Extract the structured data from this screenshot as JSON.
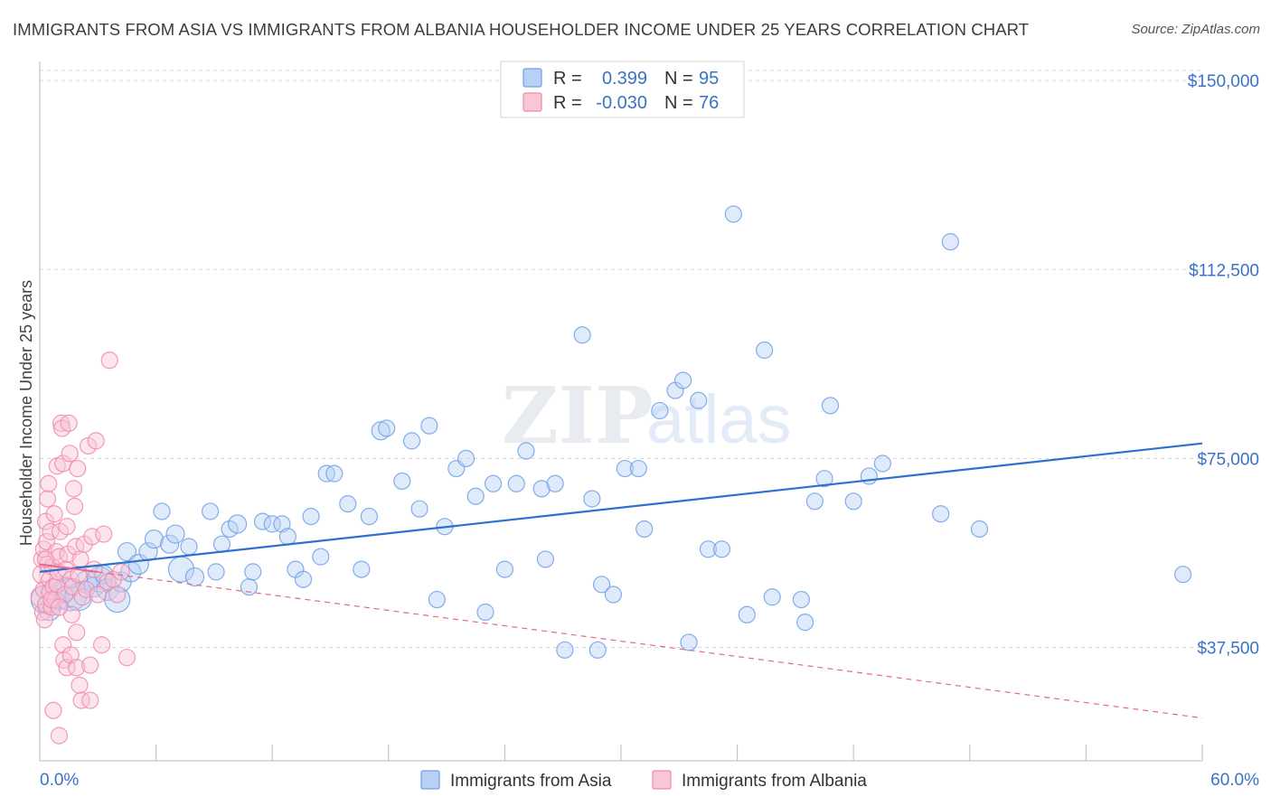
{
  "title": "IMMIGRANTS FROM ASIA VS IMMIGRANTS FROM ALBANIA HOUSEHOLDER INCOME UNDER 25 YEARS CORRELATION CHART",
  "source": "Source: ZipAtlas.com",
  "watermark": {
    "zip": "ZIP",
    "atlas": "atlas"
  },
  "colors": {
    "asia": "#6fa0e8",
    "asia_fill": "#b8d0f4",
    "asia_line": "#2e6fd0",
    "albania": "#f08aaa",
    "albania_fill": "#f9c6d6",
    "albania_line": "#e2678f",
    "axis_text": "#3a72c8",
    "grid": "#d8d8d8"
  },
  "legend": {
    "rows": [
      {
        "r_label": "R =",
        "r_value": "0.399",
        "n_label": "N =",
        "n_value": "95",
        "series": "asia"
      },
      {
        "r_label": "R =",
        "r_value": "-0.030",
        "n_label": "N =",
        "n_value": "76",
        "series": "albania"
      }
    ]
  },
  "chart_data": {
    "type": "scatter",
    "title": "IMMIGRANTS FROM ASIA VS IMMIGRANTS FROM ALBANIA HOUSEHOLDER INCOME UNDER 25 YEARS CORRELATION CHART",
    "xlabel": "",
    "ylabel": "Householder Income Under 25 years",
    "xlim": [
      0,
      60
    ],
    "ylim": [
      15000,
      152000
    ],
    "x_tick_labels": [
      "0.0%",
      "60.0%"
    ],
    "y_ticks": [
      37500,
      75000,
      112500,
      150000
    ],
    "y_tick_labels": [
      "$37,500",
      "$75,000",
      "$112,500",
      "$150,000"
    ],
    "grid": "horizontal dashed",
    "legend_position": "bottom",
    "series": [
      {
        "name": "Immigrants from Asia",
        "key": "asia",
        "trend": {
          "x": [
            0,
            60
          ],
          "y": [
            52500,
            78000
          ]
        },
        "points": [
          [
            0.3,
            47000,
            16
          ],
          [
            0.5,
            45000,
            12
          ],
          [
            0.8,
            48500,
            14
          ],
          [
            1.0,
            47000,
            11
          ],
          [
            1.3,
            49000,
            13
          ],
          [
            1.6,
            48000,
            18
          ],
          [
            2.0,
            47500,
            15
          ],
          [
            2.4,
            50500,
            12
          ],
          [
            2.8,
            49500,
            11
          ],
          [
            3.1,
            51000,
            14
          ],
          [
            3.3,
            52000,
            10
          ],
          [
            3.5,
            49000,
            12
          ],
          [
            4.0,
            47000,
            14
          ],
          [
            4.2,
            50500,
            11
          ],
          [
            4.5,
            56500,
            10
          ],
          [
            4.7,
            52500,
            11
          ],
          [
            5.1,
            54000,
            11
          ],
          [
            5.6,
            56500,
            10
          ],
          [
            5.9,
            59000,
            10
          ],
          [
            6.3,
            64500,
            9
          ],
          [
            6.7,
            58000,
            10
          ],
          [
            7.0,
            60000,
            10
          ],
          [
            7.3,
            53000,
            14
          ],
          [
            7.7,
            57500,
            9
          ],
          [
            8.0,
            51500,
            10
          ],
          [
            8.8,
            64500,
            9
          ],
          [
            9.1,
            52500,
            9
          ],
          [
            9.4,
            58000,
            9
          ],
          [
            9.8,
            61000,
            9
          ],
          [
            10.2,
            62000,
            10
          ],
          [
            10.8,
            49500,
            9
          ],
          [
            11.0,
            52500,
            9
          ],
          [
            11.5,
            62500,
            9
          ],
          [
            12.0,
            62000,
            9
          ],
          [
            12.5,
            62000,
            9
          ],
          [
            12.8,
            59500,
            9
          ],
          [
            13.2,
            53000,
            9
          ],
          [
            13.6,
            51000,
            9
          ],
          [
            14.0,
            63500,
            9
          ],
          [
            14.5,
            55500,
            9
          ],
          [
            14.8,
            72000,
            9
          ],
          [
            15.2,
            72000,
            9
          ],
          [
            15.9,
            66000,
            9
          ],
          [
            16.6,
            53000,
            9
          ],
          [
            17.0,
            63500,
            9
          ],
          [
            17.6,
            80500,
            10
          ],
          [
            17.9,
            81000,
            9
          ],
          [
            18.7,
            70500,
            9
          ],
          [
            19.2,
            78500,
            9
          ],
          [
            19.6,
            65000,
            9
          ],
          [
            20.1,
            81500,
            9
          ],
          [
            20.5,
            47000,
            9
          ],
          [
            20.9,
            61500,
            9
          ],
          [
            21.5,
            73000,
            9
          ],
          [
            22.0,
            75000,
            9
          ],
          [
            22.5,
            67500,
            9
          ],
          [
            23.0,
            44500,
            9
          ],
          [
            23.4,
            70000,
            9
          ],
          [
            24.0,
            53000,
            9
          ],
          [
            24.6,
            70000,
            9
          ],
          [
            25.1,
            76500,
            9
          ],
          [
            25.9,
            69000,
            9
          ],
          [
            26.1,
            55000,
            9
          ],
          [
            26.6,
            70000,
            9
          ],
          [
            27.1,
            37000,
            9
          ],
          [
            28.0,
            99500,
            9
          ],
          [
            28.5,
            67000,
            9
          ],
          [
            28.8,
            37000,
            9
          ],
          [
            29.0,
            50000,
            9
          ],
          [
            29.6,
            48000,
            9
          ],
          [
            30.2,
            73000,
            9
          ],
          [
            30.9,
            73000,
            9
          ],
          [
            31.2,
            61000,
            9
          ],
          [
            32.0,
            84500,
            9
          ],
          [
            32.8,
            88500,
            9
          ],
          [
            33.2,
            90500,
            9
          ],
          [
            33.5,
            38500,
            9
          ],
          [
            34.0,
            86500,
            9
          ],
          [
            34.5,
            57000,
            9
          ],
          [
            35.2,
            57000,
            9
          ],
          [
            35.8,
            123500,
            9
          ],
          [
            36.5,
            44000,
            9
          ],
          [
            37.4,
            96500,
            9
          ],
          [
            37.8,
            47500,
            9
          ],
          [
            39.3,
            47000,
            9
          ],
          [
            39.5,
            42500,
            9
          ],
          [
            40.0,
            66500,
            9
          ],
          [
            40.5,
            71000,
            9
          ],
          [
            40.8,
            85500,
            9
          ],
          [
            42.0,
            66500,
            9
          ],
          [
            42.8,
            71500,
            9
          ],
          [
            43.5,
            74000,
            9
          ],
          [
            46.5,
            64000,
            9
          ],
          [
            47.0,
            118000,
            9
          ],
          [
            48.5,
            61000,
            9
          ],
          [
            59.0,
            52000,
            9
          ]
        ]
      },
      {
        "name": "Immigrants from Albania",
        "key": "albania",
        "trend": {
          "x": [
            0,
            60
          ],
          "y": [
            54000,
            23500
          ]
        },
        "points": [
          [
            0.1,
            47500,
            12
          ],
          [
            0.1,
            52000,
            10
          ],
          [
            0.1,
            55000,
            9
          ],
          [
            0.15,
            44500,
            9
          ],
          [
            0.2,
            57000,
            9
          ],
          [
            0.2,
            49000,
            9
          ],
          [
            0.25,
            43000,
            9
          ],
          [
            0.3,
            62500,
            9
          ],
          [
            0.3,
            46000,
            9
          ],
          [
            0.35,
            58500,
            9
          ],
          [
            0.4,
            54000,
            9
          ],
          [
            0.4,
            67000,
            9
          ],
          [
            0.45,
            70000,
            9
          ],
          [
            0.5,
            48500,
            9
          ],
          [
            0.5,
            51000,
            9
          ],
          [
            0.55,
            60500,
            9
          ],
          [
            0.6,
            45500,
            9
          ],
          [
            0.65,
            53500,
            9
          ],
          [
            0.7,
            49500,
            9
          ],
          [
            0.7,
            25000,
            9
          ],
          [
            0.75,
            64000,
            9
          ],
          [
            0.8,
            47000,
            9
          ],
          [
            0.85,
            56500,
            9
          ],
          [
            0.9,
            73500,
            9
          ],
          [
            0.9,
            50000,
            9
          ],
          [
            0.95,
            52500,
            9
          ],
          [
            1.0,
            20000,
            9
          ],
          [
            1.0,
            55500,
            9
          ],
          [
            1.05,
            60500,
            9
          ],
          [
            1.1,
            82000,
            9
          ],
          [
            1.15,
            81000,
            9
          ],
          [
            1.2,
            74000,
            9
          ],
          [
            1.2,
            38000,
            9
          ],
          [
            1.25,
            35000,
            9
          ],
          [
            1.3,
            48000,
            9
          ],
          [
            1.35,
            53000,
            9
          ],
          [
            1.4,
            33500,
            9
          ],
          [
            1.4,
            61500,
            9
          ],
          [
            1.45,
            56000,
            9
          ],
          [
            1.5,
            82000,
            9
          ],
          [
            1.55,
            76000,
            9
          ],
          [
            1.6,
            51000,
            9
          ],
          [
            1.6,
            36000,
            9
          ],
          [
            1.65,
            44000,
            9
          ],
          [
            1.7,
            49500,
            9
          ],
          [
            1.75,
            69000,
            9
          ],
          [
            1.8,
            65500,
            9
          ],
          [
            1.85,
            57500,
            9
          ],
          [
            1.9,
            40500,
            9
          ],
          [
            1.9,
            33500,
            9
          ],
          [
            1.95,
            73000,
            9
          ],
          [
            2.0,
            52000,
            9
          ],
          [
            2.05,
            30000,
            9
          ],
          [
            2.1,
            55000,
            9
          ],
          [
            2.15,
            27000,
            9
          ],
          [
            2.2,
            47500,
            9
          ],
          [
            2.3,
            58000,
            9
          ],
          [
            2.4,
            49000,
            9
          ],
          [
            2.5,
            77500,
            9
          ],
          [
            2.6,
            34000,
            9
          ],
          [
            2.6,
            27000,
            9
          ],
          [
            2.7,
            59500,
            9
          ],
          [
            2.8,
            53000,
            9
          ],
          [
            2.9,
            78500,
            9
          ],
          [
            3.0,
            48000,
            9
          ],
          [
            3.2,
            38000,
            9
          ],
          [
            3.3,
            60000,
            9
          ],
          [
            3.5,
            50500,
            9
          ],
          [
            3.6,
            94500,
            9
          ],
          [
            3.8,
            51000,
            9
          ],
          [
            4.0,
            48000,
            9
          ],
          [
            4.2,
            52500,
            9
          ],
          [
            4.5,
            35500,
            9
          ],
          [
            0.6,
            47000,
            9
          ],
          [
            1.0,
            45500,
            9
          ],
          [
            0.3,
            55000,
            9
          ]
        ]
      }
    ]
  },
  "bottom_legend": [
    {
      "label": "Immigrants from Asia",
      "series": "asia"
    },
    {
      "label": "Immigrants from Albania",
      "series": "albania"
    }
  ]
}
